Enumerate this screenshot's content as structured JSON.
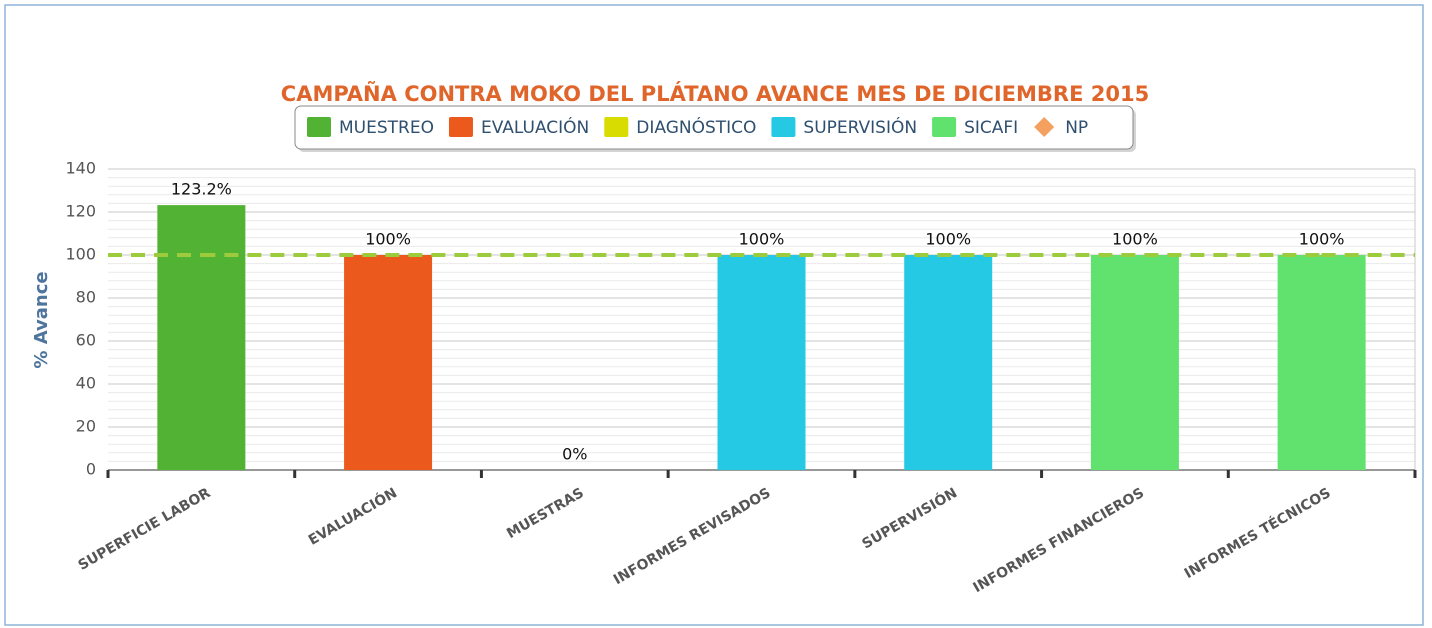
{
  "chart_data": {
    "type": "bar",
    "title": "CAMPAÑA CONTRA MOKO DEL PLÁTANO AVANCE MES DE DICIEMBRE 2015",
    "y_label": "% Avance",
    "categories": [
      "SUPERFICIE LABOR",
      "EVALUACIÓN",
      "MUESTRAS",
      "INFORMES REVISADOS",
      "SUPERVISIÓN",
      "INFORMES FINANCIEROS",
      "INFORMES TÉCNICOS"
    ],
    "series": [
      {
        "name": "MUESTREO",
        "color": "#52b233",
        "values": [
          123.2,
          null,
          null,
          null,
          null,
          null,
          null
        ],
        "value_labels": [
          "123.2%",
          null,
          null,
          null,
          null,
          null,
          null
        ]
      },
      {
        "name": "EVALUACIÓN",
        "color": "#eb5a1c",
        "values": [
          null,
          100,
          null,
          null,
          null,
          null,
          null
        ],
        "value_labels": [
          null,
          "100%",
          null,
          null,
          null,
          null,
          null
        ]
      },
      {
        "name": "DIAGNÓSTICO",
        "color": "#d9dc00",
        "values": [
          null,
          null,
          0,
          null,
          null,
          null,
          null
        ],
        "value_labels": [
          null,
          null,
          "0%",
          null,
          null,
          null,
          null
        ]
      },
      {
        "name": "SUPERVISIÓN",
        "color": "#26c9e3",
        "values": [
          null,
          null,
          null,
          100,
          100,
          null,
          null
        ],
        "value_labels": [
          null,
          null,
          null,
          "100%",
          "100%",
          null,
          null
        ]
      },
      {
        "name": "SICAFI",
        "color": "#61e26f",
        "values": [
          null,
          null,
          null,
          null,
          null,
          100,
          100
        ],
        "value_labels": [
          null,
          null,
          null,
          null,
          null,
          "100%",
          "100%"
        ]
      },
      {
        "name": "NP",
        "type": "line",
        "color": "#f4a05f",
        "line_color": "#9ccc3c",
        "dashed": true,
        "values": [
          100,
          100,
          100,
          100,
          100,
          100,
          100
        ]
      }
    ],
    "ylim": [
      0,
      140
    ],
    "yticks": [
      0,
      20,
      40,
      60,
      80,
      100,
      120,
      140
    ],
    "grid": true,
    "legend": "top"
  }
}
